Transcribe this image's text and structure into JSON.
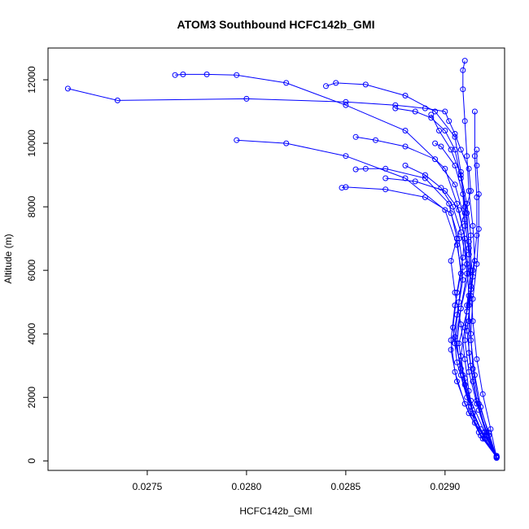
{
  "chart_data": {
    "type": "scatter",
    "title": "ATOM3 Southbound HCFC142b_GMI",
    "xlabel": "HCFC142b_GMI",
    "ylabel": "Altitude (m)",
    "xlim": [
      0.027,
      0.0293
    ],
    "ylim": [
      -300,
      13000
    ],
    "xticks": [
      0.0275,
      0.028,
      0.0285,
      0.029
    ],
    "xtick_labels": [
      "0.0275",
      "0.0280",
      "0.0285",
      "0.0290"
    ],
    "yticks": [
      0,
      2000,
      4000,
      6000,
      8000,
      10000,
      12000
    ],
    "ytick_labels": [
      "0",
      "2000",
      "4000",
      "6000",
      "8000",
      "10000",
      "12000"
    ],
    "color": "#0000ff",
    "marker": "open-circle",
    "lines_connected": true,
    "series": [
      {
        "x": [
          0.02926,
          0.02922,
          0.02915,
          0.02912,
          0.0291,
          0.02908,
          0.02905,
          0.02903,
          0.02906,
          0.0291,
          0.02913,
          0.02912,
          0.02908,
          0.02905,
          0.02902,
          0.029,
          0.0289,
          0.02875,
          0.0285,
          0.028,
          0.02735,
          0.0271
        ],
        "y": [
          100,
          600,
          1200,
          2200,
          3200,
          4300,
          5300,
          6300,
          7000,
          7800,
          8500,
          9200,
          9800,
          10300,
          10700,
          11000,
          11100,
          11200,
          11300,
          11400,
          11350,
          11720
        ]
      },
      {
        "x": [
          0.02926,
          0.0292,
          0.02914,
          0.0291,
          0.02905,
          0.02908,
          0.02912,
          0.0291,
          0.02906,
          0.029,
          0.0288,
          0.0285,
          0.0282,
          0.02795,
          0.0278,
          0.02768,
          0.02764
        ],
        "y": [
          150,
          700,
          1500,
          2600,
          3700,
          4800,
          5900,
          7000,
          8100,
          9200,
          10400,
          11200,
          11900,
          12150,
          12170,
          12170,
          12150
        ]
      },
      {
        "x": [
          0.02926,
          0.02918,
          0.02912,
          0.02909,
          0.02907,
          0.02911,
          0.02914,
          0.02912,
          0.0291,
          0.02908,
          0.02905,
          0.02895,
          0.0288,
          0.0286,
          0.02845,
          0.0284
        ],
        "y": [
          120,
          800,
          1700,
          2700,
          3700,
          4700,
          5800,
          6900,
          8000,
          9100,
          10200,
          11000,
          11500,
          11850,
          11900,
          11800
        ]
      },
      {
        "x": [
          0.02926,
          0.02921,
          0.02916,
          0.02913,
          0.02911,
          0.02913,
          0.02915,
          0.02914,
          0.02912,
          0.02911,
          0.0291,
          0.02909,
          0.02909,
          0.0291
        ],
        "y": [
          100,
          900,
          1900,
          3000,
          4100,
          5200,
          6300,
          7400,
          8500,
          9600,
          10700,
          11700,
          12300,
          12600
        ]
      },
      {
        "x": [
          0.02926,
          0.02919,
          0.02912,
          0.02906,
          0.02903,
          0.02906,
          0.02909,
          0.02906,
          0.029,
          0.0288,
          0.0285,
          0.0282,
          0.02795
        ],
        "y": [
          110,
          700,
          1500,
          2500,
          3500,
          4600,
          5700,
          6800,
          7900,
          8900,
          9600,
          10000,
          10100
        ]
      },
      {
        "x": [
          0.02926,
          0.0292,
          0.02913,
          0.02908,
          0.02905,
          0.02907,
          0.02909,
          0.02907,
          0.02903,
          0.0289,
          0.0287,
          0.0285,
          0.02848
        ],
        "y": [
          130,
          900,
          1900,
          2900,
          3900,
          5000,
          6100,
          7000,
          7800,
          8300,
          8550,
          8620,
          8600
        ]
      },
      {
        "x": [
          0.02926,
          0.02922,
          0.02918,
          0.02915,
          0.02913,
          0.02912,
          0.02914,
          0.02916,
          0.02916,
          0.02915,
          0.02915
        ],
        "y": [
          90,
          800,
          1700,
          2700,
          3800,
          4900,
          6000,
          7100,
          8300,
          9600,
          11000
        ]
      },
      {
        "x": [
          0.02926,
          0.02917,
          0.0291,
          0.02905,
          0.02903,
          0.02905,
          0.02908,
          0.02906,
          0.02902,
          0.0289,
          0.0287,
          0.0286,
          0.02855
        ],
        "y": [
          140,
          900,
          1800,
          2800,
          3800,
          4900,
          5900,
          7000,
          8100,
          8900,
          9200,
          9200,
          9180
        ]
      },
      {
        "x": [
          0.02926,
          0.02923,
          0.02919,
          0.02916,
          0.02914,
          0.02913,
          0.02912,
          0.02911,
          0.02908,
          0.02905,
          0.029,
          0.02893,
          0.02885,
          0.02875
        ],
        "y": [
          100,
          1000,
          2100,
          3200,
          4400,
          5500,
          6700,
          7800,
          8900,
          9800,
          10400,
          10800,
          11000,
          11100
        ]
      },
      {
        "x": [
          0.02926,
          0.02921,
          0.02917,
          0.02914,
          0.02912,
          0.02912,
          0.02913,
          0.02912,
          0.0291,
          0.02905,
          0.02895,
          0.0288,
          0.02865,
          0.02855
        ],
        "y": [
          120,
          800,
          1600,
          2500,
          3400,
          4400,
          5400,
          6500,
          7600,
          8700,
          9500,
          9900,
          10100,
          10200
        ]
      },
      {
        "x": [
          0.02926,
          0.0292,
          0.02914,
          0.0291,
          0.02908,
          0.0291,
          0.02912,
          0.02911,
          0.02908,
          0.02904,
          0.02898,
          0.0289,
          0.0288
        ],
        "y": [
          100,
          700,
          1500,
          2400,
          3300,
          4200,
          5200,
          6200,
          7200,
          8000,
          8600,
          9000,
          9300
        ]
      },
      {
        "x": [
          0.02926,
          0.02918,
          0.02911,
          0.02906,
          0.02904,
          0.02906,
          0.02909,
          0.0291,
          0.02909,
          0.02905,
          0.02898,
          0.02895
        ],
        "y": [
          160,
          1000,
          2000,
          3100,
          4200,
          5300,
          6400,
          7400,
          8400,
          9300,
          9900,
          10000
        ]
      },
      {
        "x": [
          0.02926,
          0.02922,
          0.02917,
          0.02914,
          0.02913,
          0.02914,
          0.02916,
          0.02917,
          0.02917,
          0.02916,
          0.02916
        ],
        "y": [
          100,
          900,
          1800,
          2900,
          4000,
          5100,
          6200,
          7300,
          8400,
          9300,
          9800
        ]
      },
      {
        "x": [
          0.02926,
          0.02919,
          0.02913,
          0.02908,
          0.02906,
          0.02908,
          0.02911,
          0.0291,
          0.02907,
          0.029,
          0.02885,
          0.0287
        ],
        "y": [
          130,
          800,
          1700,
          2700,
          3700,
          4800,
          5900,
          7000,
          7900,
          8500,
          8800,
          8900
        ]
      },
      {
        "x": [
          0.02926,
          0.02921,
          0.02916,
          0.02912,
          0.0291,
          0.02911,
          0.02913,
          0.02913,
          0.02911,
          0.02908,
          0.02903,
          0.02897,
          0.02893
        ],
        "y": [
          110,
          900,
          1800,
          2800,
          3800,
          4900,
          6000,
          7100,
          8100,
          9000,
          9800,
          10400,
          10900
        ]
      }
    ]
  }
}
